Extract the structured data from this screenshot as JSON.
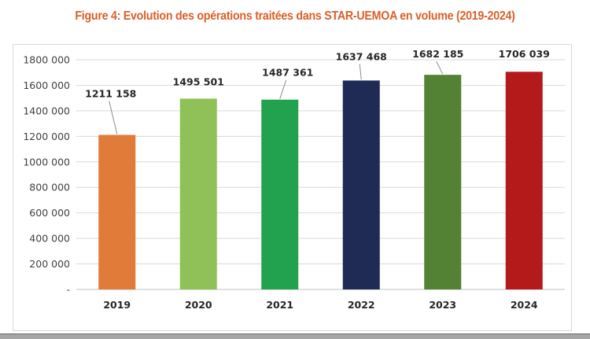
{
  "figure": {
    "title": "Figure 4: Evolution des opérations traitées dans STAR-UEMOA en volume (2019-2024)",
    "title_color": "#d9602a"
  },
  "chart_data": {
    "type": "bar",
    "title": "Figure 4: Evolution des opérations traitées dans STAR-UEMOA en volume (2019-2024)",
    "xlabel": "",
    "ylabel": "",
    "categories": [
      "2019",
      "2020",
      "2021",
      "2022",
      "2023",
      "2024"
    ],
    "values": [
      1211158,
      1495501,
      1487361,
      1637468,
      1682185,
      1706039
    ],
    "data_labels": [
      "1211 158",
      "1495 501",
      "1487 361",
      "1637 468",
      "1682 185",
      "1706 039"
    ],
    "bar_colors": [
      "#e07b39",
      "#8fc158",
      "#22a24f",
      "#1f2a55",
      "#548235",
      "#b51a1a"
    ],
    "ylim": [
      0,
      1800000
    ],
    "yticks": [
      0,
      200000,
      400000,
      600000,
      800000,
      1000000,
      1200000,
      1400000,
      1600000,
      1800000
    ],
    "ytick_labels": [
      "-",
      "200 000",
      "400 000",
      "600 000",
      "800 000",
      "1000 000",
      "1200 000",
      "1400 000",
      "1600 000",
      "1800 000"
    ],
    "grid": true,
    "legend": "none"
  }
}
